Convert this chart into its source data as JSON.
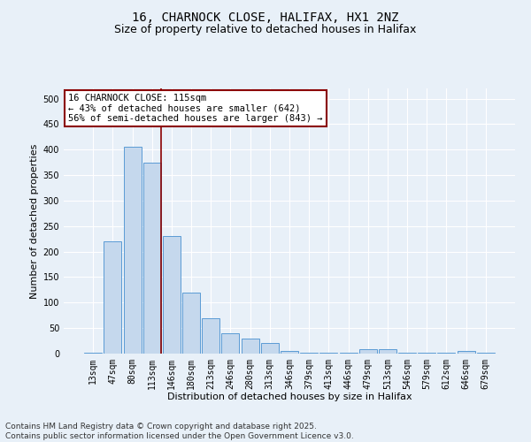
{
  "title_line1": "16, CHARNOCK CLOSE, HALIFAX, HX1 2NZ",
  "title_line2": "Size of property relative to detached houses in Halifax",
  "xlabel": "Distribution of detached houses by size in Halifax",
  "ylabel": "Number of detached properties",
  "categories": [
    "13sqm",
    "47sqm",
    "80sqm",
    "113sqm",
    "146sqm",
    "180sqm",
    "213sqm",
    "246sqm",
    "280sqm",
    "313sqm",
    "346sqm",
    "379sqm",
    "413sqm",
    "446sqm",
    "479sqm",
    "513sqm",
    "546sqm",
    "579sqm",
    "612sqm",
    "646sqm",
    "679sqm"
  ],
  "values": [
    2,
    220,
    405,
    375,
    230,
    120,
    70,
    40,
    30,
    20,
    5,
    2,
    1,
    1,
    8,
    8,
    1,
    1,
    1,
    5,
    1
  ],
  "bar_color": "#c5d8ed",
  "bar_edge_color": "#5b9bd5",
  "vline_x_index": 3,
  "vline_color": "#8b0000",
  "annotation_text": "16 CHARNOCK CLOSE: 115sqm\n← 43% of detached houses are smaller (642)\n56% of semi-detached houses are larger (843) →",
  "annotation_box_color": "#ffffff",
  "annotation_box_edge_color": "#8b0000",
  "ylim": [
    0,
    520
  ],
  "yticks": [
    0,
    50,
    100,
    150,
    200,
    250,
    300,
    350,
    400,
    450,
    500
  ],
  "background_color": "#e8f0f8",
  "plot_bg_color": "#e8f0f8",
  "footer_line1": "Contains HM Land Registry data © Crown copyright and database right 2025.",
  "footer_line2": "Contains public sector information licensed under the Open Government Licence v3.0.",
  "title_fontsize": 10,
  "subtitle_fontsize": 9,
  "axis_label_fontsize": 8,
  "tick_fontsize": 7,
  "annotation_fontsize": 7.5,
  "footer_fontsize": 6.5
}
